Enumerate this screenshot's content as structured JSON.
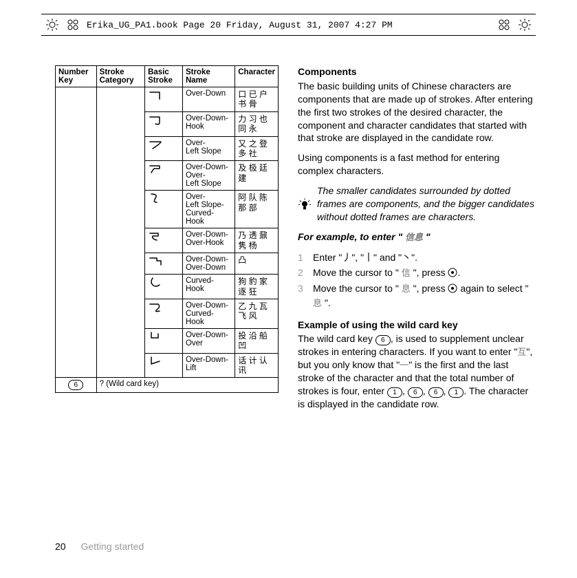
{
  "header": {
    "text": "Erika_UG_PA1.book  Page 20  Friday, August 31, 2007  4:27 PM"
  },
  "table": {
    "headers": [
      "Number Key",
      "Stroke Category",
      "Basic Stroke",
      "Stroke Name",
      "Character"
    ],
    "rows": [
      {
        "name": "Over-Down",
        "chars": "口 已 户\n书 骨"
      },
      {
        "name": "Over-Down-Hook",
        "chars": "力 习 也\n同 永"
      },
      {
        "name": "Over-\nLeft Slope",
        "chars": "又 之 登\n多 社"
      },
      {
        "name": "Over-Down-Over-\nLeft Slope",
        "chars": "及 极 廷\n建"
      },
      {
        "name": "Over-\nLeft Slope-Curved-Hook",
        "chars": "阿 队 陈\n那 部"
      },
      {
        "name": "Over-Down-Over-Hook",
        "chars": "乃 透 鼐\n隽 杨"
      },
      {
        "name": "Over-Down-Over-Down",
        "chars": "凸"
      },
      {
        "name": "Curved-Hook",
        "chars": "狗 豹 家\n逐 狂"
      },
      {
        "name": "Over-Down-Curved-Hook",
        "chars": "乙 九 瓦\n飞 风"
      },
      {
        "name": "Over-Down-Over",
        "chars": "投 沿 船\n凹"
      },
      {
        "name": "Over-Down-Lift",
        "chars": "话 计 认\n讯"
      }
    ],
    "wildcard_key": "6",
    "wildcard_label": "? (Wild card key)"
  },
  "right": {
    "components_heading": "Components",
    "components_p1": "The basic building units of Chinese characters are components that are made up of strokes. After entering the first two strokes of the desired character, the component and character candidates that started with that stroke are displayed in the candidate row.",
    "components_p2": "Using components is a fast method for entering complex characters.",
    "tip": "The smaller candidates surrounded by dotted frames are components, and the bigger candidates without dotted frames are characters.",
    "example_heading_prefix": "For example, to enter \" ",
    "example_heading_cjk": "信息",
    "example_heading_suffix": " \"",
    "steps": [
      {
        "n": "1",
        "text_parts": [
          "Enter \"丿\", \"丨\" and \"丶\"."
        ]
      },
      {
        "n": "2",
        "text_parts": [
          "Move the cursor to \" ",
          "信",
          " \", press ",
          "."
        ]
      },
      {
        "n": "3",
        "text_parts": [
          "Move the cursor to \" ",
          "息",
          " \", press ",
          " again to select \" ",
          "息",
          " \"."
        ]
      }
    ],
    "wildcard_heading": "Example of using the wild card key",
    "wildcard_text_1": "The wild card key ",
    "wildcard_key6": "6",
    "wildcard_text_2": ", is used to supplement unclear strokes in entering characters. If you want to enter \"",
    "wildcard_cjk1": "互",
    "wildcard_text_3": "\", but you only know that \"",
    "wildcard_cjk2": "一",
    "wildcard_text_4": "\" is the first and the last stroke of the character and that the total number of strokes is four, enter ",
    "wildcard_seq": [
      "1",
      "6",
      "6",
      "1"
    ],
    "wildcard_text_5": ". The character is displayed in the candidate row."
  },
  "footer": {
    "page": "20",
    "section": "Getting started"
  },
  "strokes_svg": {
    "paths": [
      "M2 4 L16 4 L16 14",
      "M2 4 L16 4 L16 12 Q16 16 10 14",
      "M2 4 L18 4 Q18 6 6 14",
      "M2 4 L16 4 L16 8 L8 8 Q6 10 4 14",
      "M4 2 Q14 2 10 8 Q6 14 12 14",
      "M2 4 L14 4 L14 8 L6 8 Q4 12 12 14",
      "M2 4 L12 4 L12 8 L18 8 L18 14",
      "M6 2 Q2 8 6 12 Q10 16 16 12",
      "M2 4 L14 4 Q18 8 12 12 Q8 16 16 14",
      "M4 2 L4 10 L14 10 L14 4",
      "M4 2 L4 12 L16 8"
    ]
  }
}
